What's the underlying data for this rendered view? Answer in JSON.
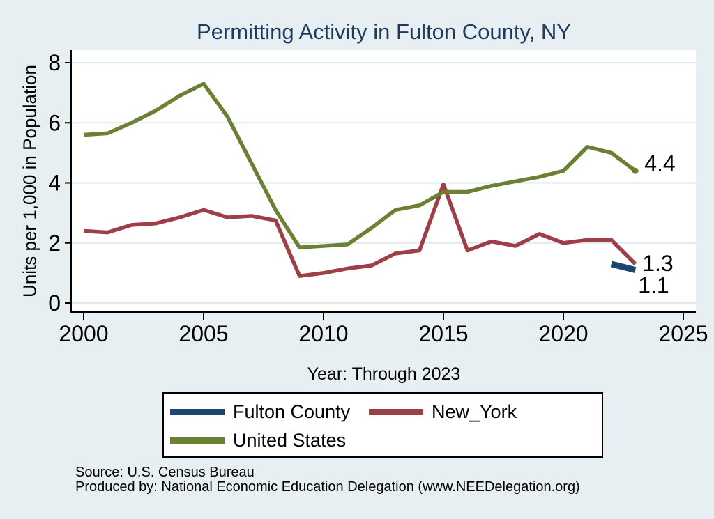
{
  "chart_data": {
    "type": "line",
    "title": "Permitting Activity in Fulton County, NY",
    "xlabel": "Year: Through 2023",
    "ylabel": "Units per 1,000 in Population",
    "x_ticks": [
      2000,
      2005,
      2010,
      2015,
      2020,
      2025
    ],
    "y_ticks": [
      0,
      2,
      4,
      6,
      8
    ],
    "xlim": [
      1999.5,
      2025.5
    ],
    "ylim": [
      0,
      8.45
    ],
    "grid": true,
    "legend_position": "bottom",
    "series": [
      {
        "name": "Fulton County",
        "color": "#1a476f",
        "line_width": 9,
        "x": [
          2022,
          2023
        ],
        "values": [
          1.3,
          1.1
        ],
        "end_label": "1.1",
        "end_label_offset": [
          4,
          33
        ]
      },
      {
        "name": "New_York",
        "color": "#9e3e47",
        "line_width": 5.5,
        "x": [
          2000,
          2001,
          2002,
          2003,
          2004,
          2005,
          2006,
          2007,
          2008,
          2009,
          2010,
          2011,
          2012,
          2013,
          2014,
          2015,
          2016,
          2017,
          2018,
          2019,
          2020,
          2021,
          2022,
          2023
        ],
        "values": [
          2.4,
          2.35,
          2.6,
          2.65,
          2.85,
          3.1,
          2.85,
          2.9,
          2.75,
          0.9,
          1.0,
          1.15,
          1.25,
          1.65,
          1.75,
          3.95,
          1.75,
          2.05,
          1.9,
          2.3,
          2.0,
          2.1,
          2.1,
          1.3
        ],
        "end_label": "1.3",
        "end_label_offset": [
          10,
          10
        ]
      },
      {
        "name": "United States",
        "color": "#6c8033",
        "line_width": 5.5,
        "x": [
          2000,
          2001,
          2002,
          2003,
          2004,
          2005,
          2006,
          2007,
          2008,
          2009,
          2010,
          2011,
          2012,
          2013,
          2014,
          2015,
          2016,
          2017,
          2018,
          2019,
          2020,
          2021,
          2022,
          2023
        ],
        "values": [
          5.6,
          5.65,
          6.0,
          6.4,
          6.9,
          7.3,
          6.2,
          4.65,
          3.1,
          1.85,
          1.9,
          1.95,
          2.5,
          3.1,
          3.25,
          3.7,
          3.7,
          3.9,
          4.05,
          4.2,
          4.4,
          5.2,
          5.0,
          4.4
        ],
        "end_label": "4.4",
        "end_label_offset": [
          13,
          0
        ],
        "end_marker": true
      }
    ]
  },
  "legend": {
    "items": [
      {
        "label": "Fulton County"
      },
      {
        "label": "New_York"
      },
      {
        "label": "United States"
      }
    ]
  },
  "source": {
    "line1": "Source: U.S. Census Bureau",
    "line2": "Produced by: National Economic Education Delegation (www.NEEDelegation.org)"
  },
  "colors": {
    "background": "#e8eff2",
    "plot_background": "#ffffff",
    "gridline": "#dfeaef",
    "axis": "#000000",
    "title": "#1e3a5f",
    "text": "#000000"
  }
}
